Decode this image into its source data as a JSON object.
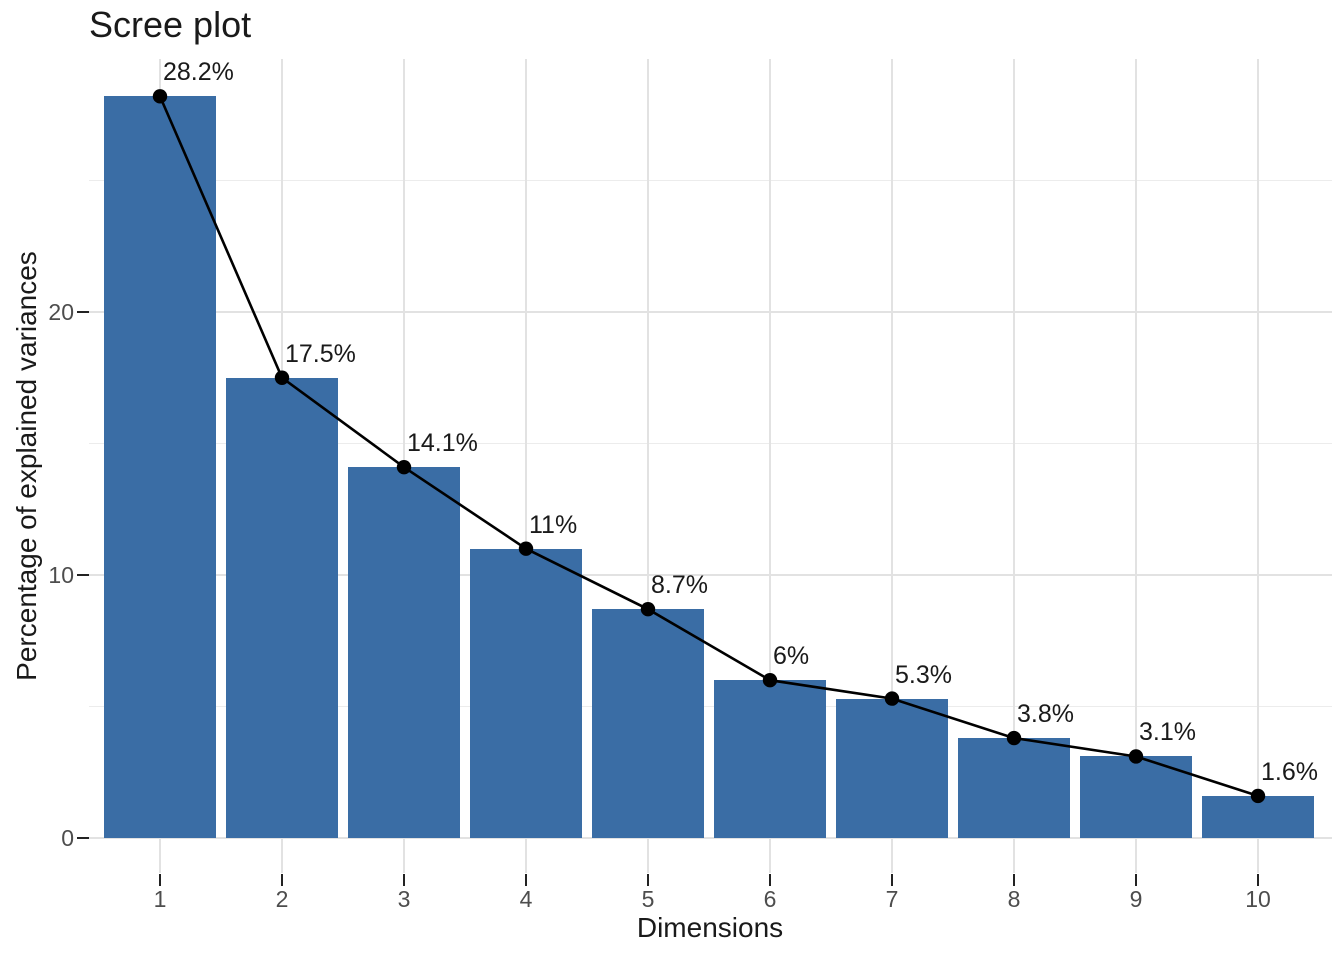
{
  "chart_data": {
    "type": "bar",
    "overlay": "line-with-points",
    "title": "Scree plot",
    "xlabel": "Dimensions",
    "ylabel": "Percentage of explained variances",
    "categories": [
      "1",
      "2",
      "3",
      "4",
      "5",
      "6",
      "7",
      "8",
      "9",
      "10"
    ],
    "values": [
      28.2,
      17.5,
      14.1,
      11,
      8.7,
      6,
      5.3,
      3.8,
      3.1,
      1.6
    ],
    "point_labels": [
      "28.2%",
      "17.5%",
      "14.1%",
      "11%",
      "8.7%",
      "6%",
      "5.3%",
      "3.8%",
      "3.1%",
      "1.6%"
    ],
    "ylim": [
      0,
      28.2
    ],
    "y_major_ticks": [
      0,
      10,
      20
    ],
    "y_major_tick_labels": [
      "0",
      "10",
      "20"
    ],
    "y_minor_gridlines": [
      5,
      15,
      25
    ],
    "grid": "major-and-minor-horizontal, major-vertical-per-category",
    "legend_position": "none",
    "colors": {
      "bar_fill": "#3A6DA5",
      "line": "#000000",
      "point": "#000000",
      "grid_major": "#E2E2E2",
      "grid_minor": "#ECECEC",
      "tick_mark": "#222222",
      "tick_label": "#4D4D4D",
      "text": "#1A1A1A",
      "background": "#FFFFFF"
    }
  }
}
